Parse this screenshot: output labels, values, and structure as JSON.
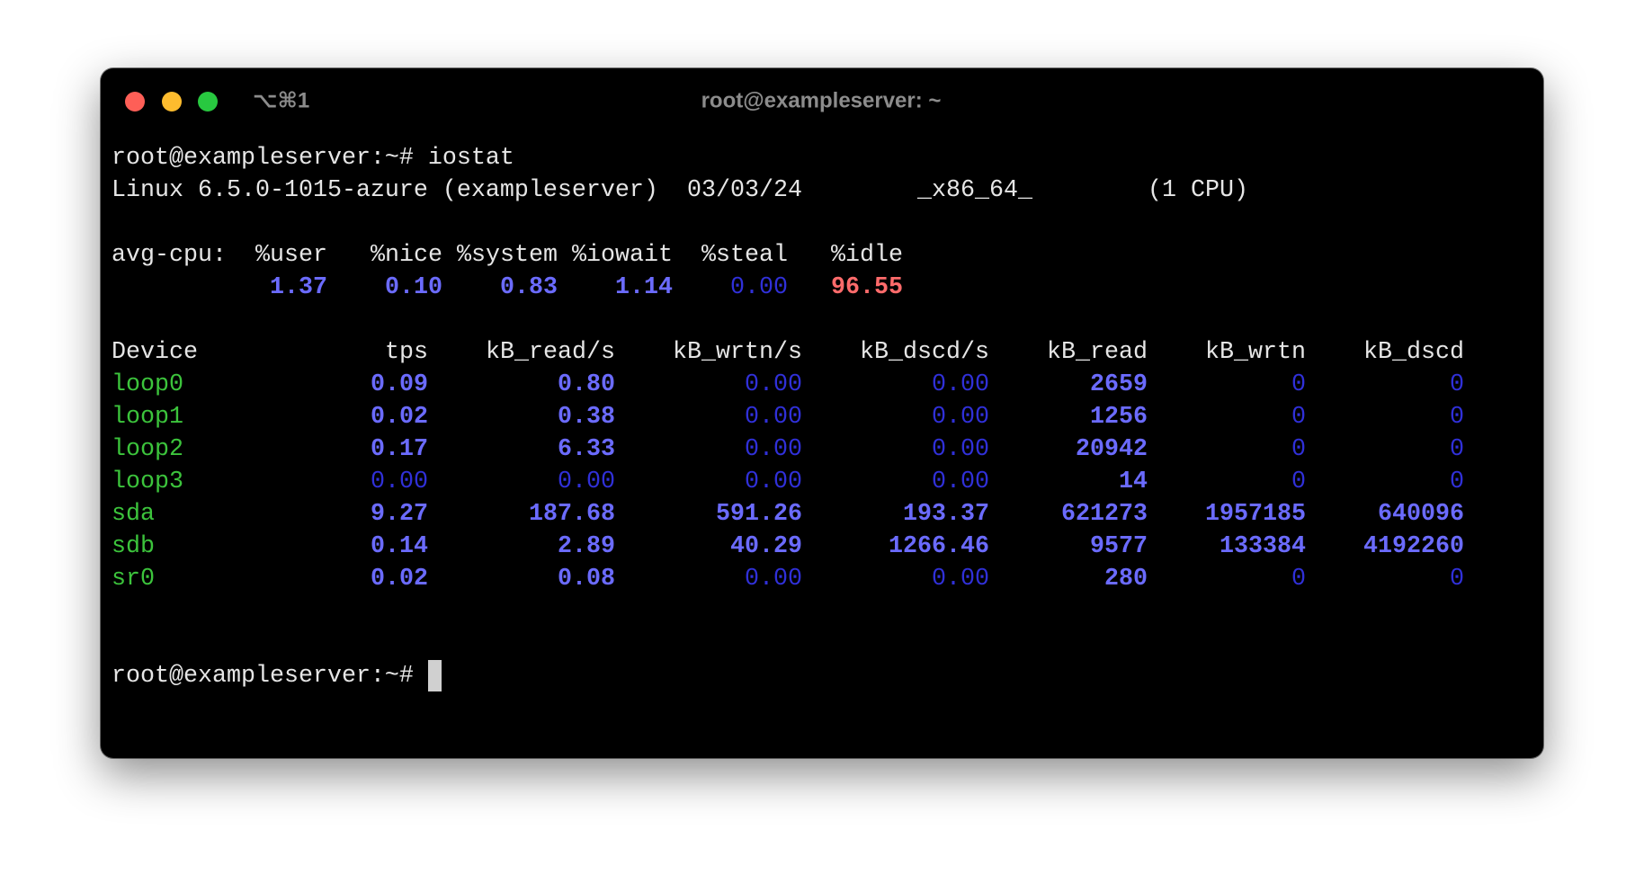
{
  "window": {
    "shortcut": "⌥⌘1",
    "title": "root@exampleserver: ~"
  },
  "terminal": {
    "command": "root@exampleserver:~# iostat",
    "system_info": [
      "Linux 6.5.0-1015-azure (exampleserver)",
      "03/03/24",
      "_x86_64_",
      "(1 CPU)"
    ],
    "cpu": {
      "label": "avg-cpu:",
      "headers": [
        "%user",
        "%nice",
        "%system",
        "%iowait",
        "%steal",
        "%idle"
      ],
      "values": [
        "1.37",
        "0.10",
        "0.83",
        "1.14",
        "0.00",
        "96.55"
      ]
    },
    "devices": {
      "headers": [
        "Device",
        "tps",
        "kB_read/s",
        "kB_wrtn/s",
        "kB_dscd/s",
        "kB_read",
        "kB_wrtn",
        "kB_dscd"
      ],
      "rows": [
        {
          "name": "loop0",
          "values": [
            "0.09",
            "0.80",
            "0.00",
            "0.00",
            "2659",
            "0",
            "0"
          ]
        },
        {
          "name": "loop1",
          "values": [
            "0.02",
            "0.38",
            "0.00",
            "0.00",
            "1256",
            "0",
            "0"
          ]
        },
        {
          "name": "loop2",
          "values": [
            "0.17",
            "6.33",
            "0.00",
            "0.00",
            "20942",
            "0",
            "0"
          ]
        },
        {
          "name": "loop3",
          "values": [
            "0.00",
            "0.00",
            "0.00",
            "0.00",
            "14",
            "0",
            "0"
          ]
        },
        {
          "name": "sda",
          "values": [
            "9.27",
            "187.68",
            "591.26",
            "193.37",
            "621273",
            "1957185",
            "640096"
          ]
        },
        {
          "name": "sdb",
          "values": [
            "0.14",
            "2.89",
            "40.29",
            "1266.46",
            "9577",
            "133384",
            "4192260"
          ]
        },
        {
          "name": "sr0",
          "values": [
            "0.02",
            "0.08",
            "0.00",
            "0.00",
            "280",
            "0",
            "0"
          ]
        }
      ]
    },
    "prompt": "root@exampleserver:~#"
  }
}
